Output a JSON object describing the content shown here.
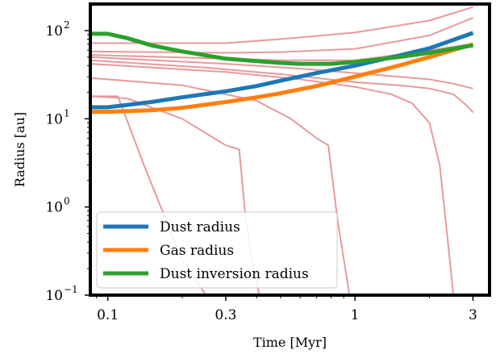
{
  "chart_data": {
    "type": "line",
    "xlabel": "Time [Myr]",
    "ylabel": "Radius [au]",
    "xscale": "log",
    "yscale": "log",
    "xlim": [
      0.085,
      3.5
    ],
    "ylim": [
      0.1,
      200
    ],
    "grid": false,
    "legend_position": "lower-left",
    "x_ticks": [
      {
        "value": 0.1,
        "label": "0.1"
      },
      {
        "value": 0.3,
        "label": "0.3"
      },
      {
        "value": 1,
        "label": "1"
      },
      {
        "value": 3,
        "label": "3"
      }
    ],
    "y_ticks": [
      {
        "value": 0.1,
        "label": "10",
        "exp": "−1"
      },
      {
        "value": 1,
        "label": "10",
        "exp": "0"
      },
      {
        "value": 10,
        "label": "10",
        "exp": "1"
      },
      {
        "value": 100,
        "label": "10",
        "exp": "2"
      }
    ],
    "series": [
      {
        "name": "Dust radius",
        "color": "#1f77b4",
        "x": [
          0.085,
          0.1,
          0.15,
          0.2,
          0.3,
          0.4,
          0.5,
          0.7,
          1.0,
          1.5,
          2.0,
          3.0
        ],
        "y": [
          13.5,
          13.5,
          15.5,
          17.5,
          20.5,
          23.5,
          27,
          33,
          40,
          52,
          63,
          94
        ]
      },
      {
        "name": "Gas radius",
        "color": "#ff7f0e",
        "x": [
          0.085,
          0.1,
          0.15,
          0.2,
          0.3,
          0.4,
          0.5,
          0.7,
          1.0,
          1.5,
          2.0,
          3.0
        ],
        "y": [
          12,
          12,
          12.5,
          13.3,
          15.5,
          17.5,
          19.5,
          23.5,
          30,
          40,
          50,
          70
        ]
      },
      {
        "name": "Dust inversion radius",
        "color": "#2ca02c",
        "x": [
          0.085,
          0.1,
          0.12,
          0.15,
          0.2,
          0.3,
          0.4,
          0.5,
          0.6,
          0.8,
          1.0,
          1.5,
          2.0,
          3.0
        ],
        "y": [
          92,
          92,
          82,
          68,
          58,
          48,
          45,
          43,
          42,
          42,
          44,
          50,
          56,
          68
        ]
      }
    ],
    "background_lines": {
      "color": "#e8999a",
      "lines": [
        {
          "x": [
            0.085,
            0.3,
            0.5,
            1.0,
            2.0,
            3.0
          ],
          "y": [
            72,
            72,
            80,
            95,
            130,
            185
          ]
        },
        {
          "x": [
            0.085,
            0.3,
            0.5,
            1.0,
            2.0,
            3.0
          ],
          "y": [
            58,
            56,
            57,
            62,
            88,
            140
          ]
        },
        {
          "x": [
            0.085,
            0.3,
            0.5,
            1.0,
            1.8,
            3.0
          ],
          "y": [
            53,
            48,
            46,
            46,
            57,
            71
          ]
        },
        {
          "x": [
            0.085,
            0.3,
            0.6,
            1.0,
            2.0,
            2.5,
            3.0
          ],
          "y": [
            50,
            42,
            37,
            33,
            28,
            25,
            22
          ]
        },
        {
          "x": [
            0.085,
            0.25,
            0.5,
            1.0,
            1.5,
            2.0,
            2.5,
            2.8,
            3.0
          ],
          "y": [
            46,
            38,
            32,
            26,
            24,
            22,
            19,
            14.5,
            11.8
          ]
        },
        {
          "x": [
            0.085,
            0.3,
            0.6,
            1.0,
            1.4,
            1.7,
            2.0,
            2.2,
            2.4,
            2.5
          ],
          "y": [
            42,
            34,
            28,
            23,
            19,
            15,
            9,
            3,
            0.3,
            0.1
          ]
        },
        {
          "x": [
            0.085,
            0.2,
            0.4,
            0.55,
            0.7,
            0.78,
            0.85,
            0.95
          ],
          "y": [
            29,
            24,
            16,
            10,
            6,
            5,
            0.7,
            0.1
          ]
        },
        {
          "x": [
            0.085,
            0.12,
            0.2,
            0.3,
            0.34,
            0.36,
            0.38,
            0.41
          ],
          "y": [
            18,
            17,
            10,
            5,
            4.5,
            0.8,
            0.3,
            0.1
          ]
        },
        {
          "x": [
            0.085,
            0.11,
            0.14,
            0.2,
            0.25
          ],
          "y": [
            18,
            18,
            3,
            0.25,
            0.1
          ]
        }
      ]
    },
    "legend": [
      {
        "label": "Dust radius",
        "color": "#1f77b4"
      },
      {
        "label": "Gas radius",
        "color": "#ff7f0e"
      },
      {
        "label": "Dust inversion radius",
        "color": "#2ca02c"
      }
    ]
  }
}
